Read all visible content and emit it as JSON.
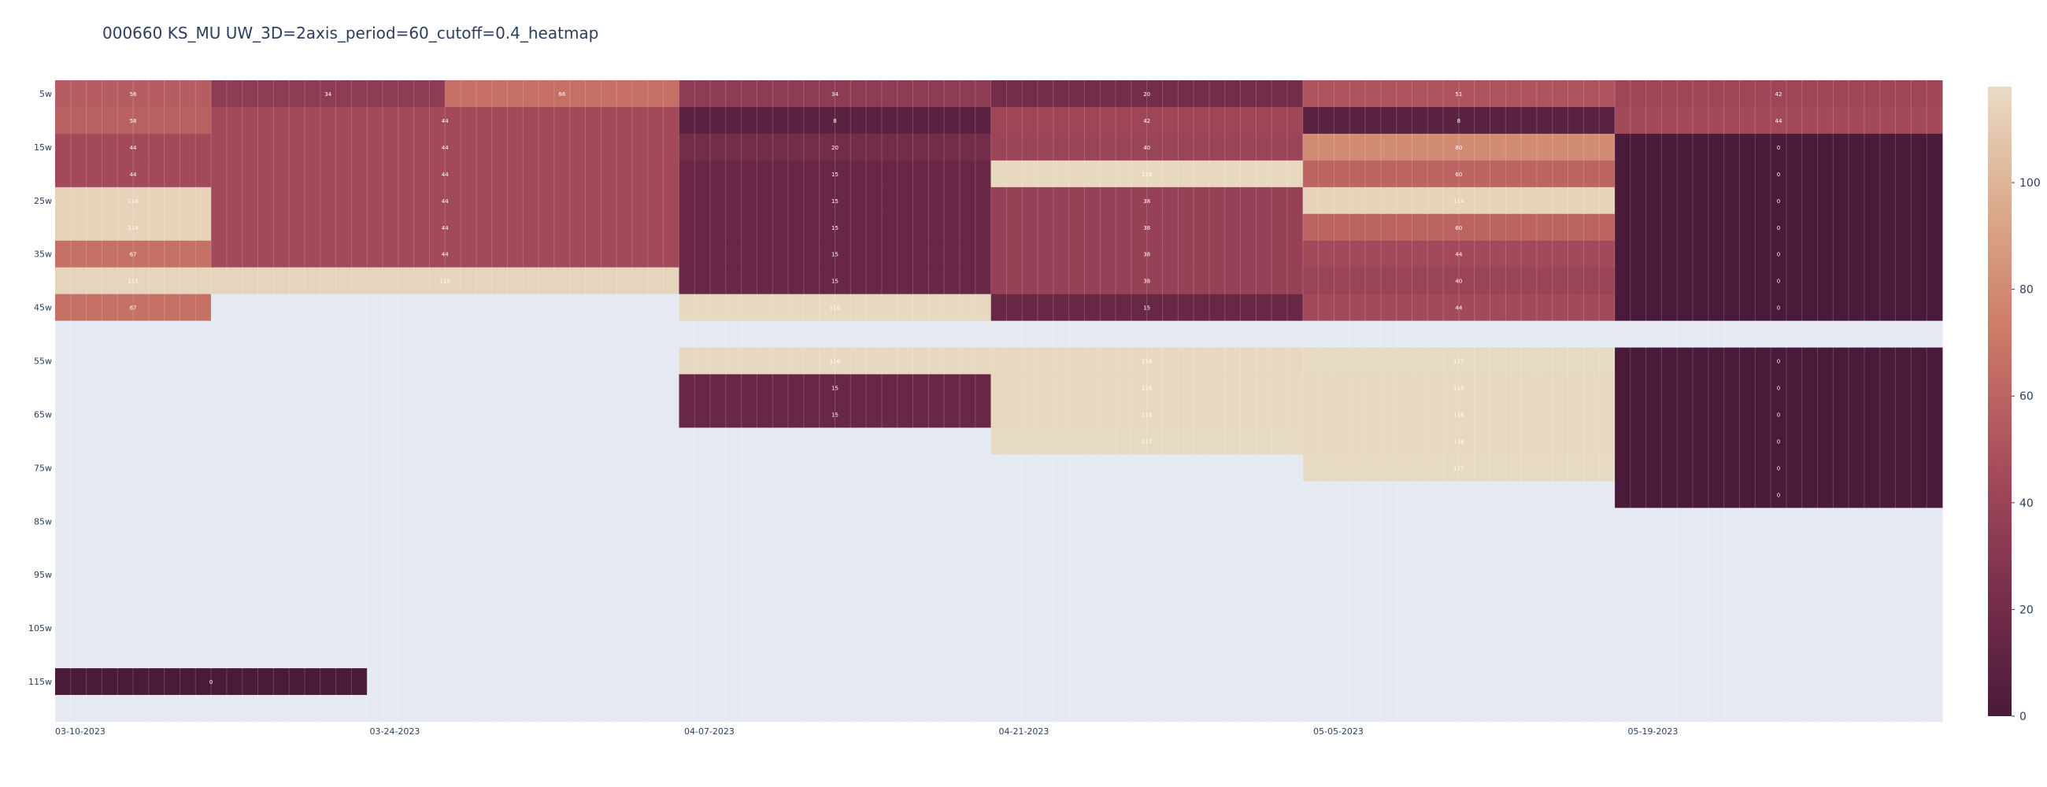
{
  "chart_data": {
    "type": "heatmap",
    "title": "000660 KS_MU UW_3D=2axis_period=60_cutoff=0.4_heatmap",
    "y_categories": [
      "5w",
      "10w",
      "15w",
      "20w",
      "25w",
      "30w",
      "35w",
      "40w",
      "45w",
      "50w",
      "55w",
      "60w",
      "65w",
      "70w",
      "75w",
      "80w",
      "85w",
      "90w",
      "95w",
      "100w",
      "105w",
      "110w",
      "115w",
      "120w"
    ],
    "y_tick_labels": [
      "5w",
      "15w",
      "25w",
      "35w",
      "45w",
      "55w",
      "65w",
      "75w",
      "85w",
      "95w",
      "105w",
      "115w"
    ],
    "x_range": [
      "03-10-2023",
      "06-02-2023"
    ],
    "x_tick_labels": [
      "03-10-2023",
      "03-24-2023",
      "04-07-2023",
      "04-21-2023",
      "05-05-2023",
      "05-19-2023"
    ],
    "colorscale": [
      "#4a1a3b",
      "#7a2f4c",
      "#a84d5c",
      "#cc7867",
      "#dba88a",
      "#e8dcc4"
    ],
    "missing_color": "#e5e9f2",
    "zmin": 0,
    "zmax": 118,
    "colorbar_ticks": [
      0,
      20,
      40,
      60,
      80,
      100
    ],
    "num_columns": 121,
    "rows": [
      {
        "label": "5w",
        "segments": [
          [
            0,
            10,
            56
          ],
          [
            10,
            25,
            34
          ],
          [
            25,
            40,
            66
          ],
          [
            40,
            60,
            34
          ],
          [
            60,
            80,
            20
          ],
          [
            80,
            100,
            51
          ],
          [
            100,
            121,
            42
          ]
        ]
      },
      {
        "label": "10w",
        "segments": [
          [
            0,
            10,
            58
          ],
          [
            10,
            40,
            44
          ],
          [
            40,
            60,
            8
          ],
          [
            60,
            80,
            42
          ],
          [
            80,
            100,
            8
          ],
          [
            100,
            121,
            44
          ]
        ]
      },
      {
        "label": "15w",
        "segments": [
          [
            0,
            10,
            44
          ],
          [
            10,
            40,
            44
          ],
          [
            40,
            60,
            20
          ],
          [
            60,
            80,
            40
          ],
          [
            80,
            100,
            80
          ],
          [
            100,
            121,
            0
          ]
        ]
      },
      {
        "label": "20w",
        "segments": [
          [
            0,
            10,
            44
          ],
          [
            10,
            40,
            44
          ],
          [
            40,
            60,
            15
          ],
          [
            60,
            80,
            116
          ],
          [
            80,
            100,
            60
          ],
          [
            100,
            121,
            0
          ]
        ]
      },
      {
        "label": "25w",
        "segments": [
          [
            0,
            10,
            114
          ],
          [
            10,
            40,
            44
          ],
          [
            40,
            60,
            15
          ],
          [
            60,
            80,
            38
          ],
          [
            80,
            100,
            114
          ],
          [
            100,
            121,
            0
          ]
        ]
      },
      {
        "label": "30w",
        "segments": [
          [
            0,
            10,
            114
          ],
          [
            10,
            40,
            44
          ],
          [
            40,
            60,
            15
          ],
          [
            60,
            80,
            38
          ],
          [
            80,
            100,
            60
          ],
          [
            100,
            121,
            0
          ]
        ]
      },
      {
        "label": "35w",
        "segments": [
          [
            0,
            10,
            67
          ],
          [
            10,
            40,
            44
          ],
          [
            40,
            60,
            15
          ],
          [
            60,
            80,
            38
          ],
          [
            80,
            100,
            44
          ],
          [
            100,
            121,
            0
          ]
        ]
      },
      {
        "label": "40w",
        "segments": [
          [
            0,
            10,
            115
          ],
          [
            10,
            40,
            115
          ],
          [
            40,
            60,
            15
          ],
          [
            60,
            80,
            38
          ],
          [
            80,
            100,
            40
          ],
          [
            100,
            121,
            0
          ]
        ]
      },
      {
        "label": "45w",
        "segments": [
          [
            0,
            10,
            67
          ],
          [
            10,
            40,
            null
          ],
          [
            40,
            60,
            116
          ],
          [
            60,
            80,
            15
          ],
          [
            80,
            100,
            44
          ],
          [
            100,
            121,
            0
          ]
        ]
      },
      {
        "label": "50w",
        "segments": [
          [
            0,
            121,
            null
          ]
        ]
      },
      {
        "label": "55w",
        "segments": [
          [
            0,
            40,
            null
          ],
          [
            40,
            60,
            116
          ],
          [
            60,
            80,
            116
          ],
          [
            80,
            100,
            117
          ],
          [
            100,
            121,
            0
          ]
        ]
      },
      {
        "label": "60w",
        "segments": [
          [
            0,
            40,
            null
          ],
          [
            40,
            60,
            15
          ],
          [
            60,
            80,
            116
          ],
          [
            80,
            100,
            116
          ],
          [
            100,
            121,
            0
          ]
        ]
      },
      {
        "label": "65w",
        "segments": [
          [
            0,
            40,
            null
          ],
          [
            40,
            60,
            15
          ],
          [
            60,
            80,
            116
          ],
          [
            80,
            100,
            116
          ],
          [
            100,
            121,
            0
          ]
        ]
      },
      {
        "label": "70w",
        "segments": [
          [
            0,
            60,
            null
          ],
          [
            60,
            80,
            117
          ],
          [
            80,
            100,
            116
          ],
          [
            100,
            121,
            0
          ]
        ]
      },
      {
        "label": "75w",
        "segments": [
          [
            0,
            60,
            null
          ],
          [
            60,
            80,
            null
          ],
          [
            80,
            100,
            117
          ],
          [
            100,
            121,
            0
          ]
        ]
      },
      {
        "label": "80w",
        "segments": [
          [
            0,
            100,
            null
          ],
          [
            100,
            121,
            0
          ]
        ]
      },
      {
        "label": "85w",
        "segments": [
          [
            0,
            121,
            null
          ]
        ]
      },
      {
        "label": "90w",
        "segments": [
          [
            0,
            121,
            null
          ]
        ]
      },
      {
        "label": "95w",
        "segments": [
          [
            0,
            121,
            null
          ]
        ]
      },
      {
        "label": "100w",
        "segments": [
          [
            0,
            121,
            null
          ]
        ]
      },
      {
        "label": "105w",
        "segments": [
          [
            0,
            121,
            null
          ]
        ]
      },
      {
        "label": "110w",
        "segments": [
          [
            0,
            121,
            null
          ]
        ]
      },
      {
        "label": "115w",
        "segments": [
          [
            0,
            20,
            0
          ],
          [
            20,
            121,
            null
          ]
        ]
      },
      {
        "label": "120w",
        "segments": [
          [
            0,
            121,
            null
          ]
        ]
      }
    ]
  }
}
